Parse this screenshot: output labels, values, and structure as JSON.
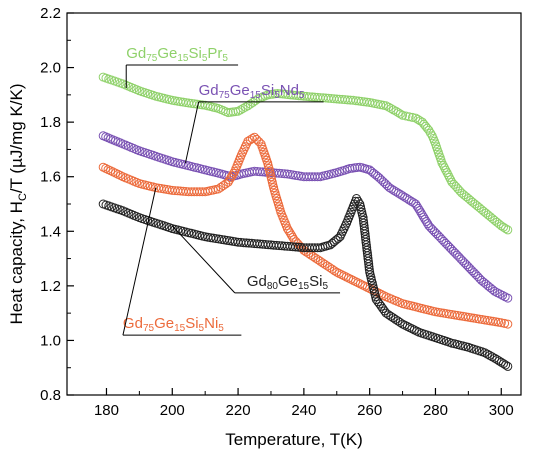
{
  "chart_data": {
    "type": "scatter",
    "xlabel": "Temperature, T(K)",
    "ylabel": "Heat capacity, H",
    "ylabel_sub": "C",
    "ylabel_suffix": "/T (µJ/mg K/K)",
    "xlim": [
      168,
      306
    ],
    "ylim": [
      0.8,
      2.2
    ],
    "x_ticks": [
      180,
      200,
      220,
      240,
      260,
      280,
      300
    ],
    "y_ticks": [
      0.8,
      1.0,
      1.2,
      1.4,
      1.6,
      1.8,
      2.0,
      2.2
    ],
    "x_tick_labels": [
      "180",
      "200",
      "220",
      "240",
      "260",
      "280",
      "300"
    ],
    "y_tick_labels": [
      "0.8",
      "1.0",
      "1.2",
      "1.4",
      "1.6",
      "1.8",
      "2.0",
      "2.2"
    ],
    "grid": false,
    "series": [
      {
        "key": "pr",
        "color": "#8fd16a",
        "label_parts": [
          [
            "Gd",
            ""
          ],
          [
            "75",
            "sub"
          ],
          [
            "Ge",
            ""
          ],
          [
            "15",
            "sub"
          ],
          [
            "Si",
            ""
          ],
          [
            "5",
            "sub"
          ],
          [
            "Pr",
            ""
          ],
          [
            "5",
            "sub"
          ]
        ],
        "points": [
          [
            179,
            1.965
          ],
          [
            185,
            1.94
          ],
          [
            190,
            1.915
          ],
          [
            195,
            1.895
          ],
          [
            200,
            1.88
          ],
          [
            205,
            1.87
          ],
          [
            210,
            1.862
          ],
          [
            214,
            1.85
          ],
          [
            217,
            1.835
          ],
          [
            220,
            1.84
          ],
          [
            223,
            1.86
          ],
          [
            226,
            1.885
          ],
          [
            229,
            1.9
          ],
          [
            232,
            1.905
          ],
          [
            236,
            1.9
          ],
          [
            240,
            1.895
          ],
          [
            245,
            1.89
          ],
          [
            250,
            1.885
          ],
          [
            255,
            1.88
          ],
          [
            260,
            1.872
          ],
          [
            265,
            1.86
          ],
          [
            268,
            1.84
          ],
          [
            270,
            1.825
          ],
          [
            272,
            1.82
          ],
          [
            274,
            1.815
          ],
          [
            276,
            1.8
          ],
          [
            278,
            1.77
          ],
          [
            279,
            1.75
          ],
          [
            280,
            1.72
          ],
          [
            282,
            1.65
          ],
          [
            285,
            1.58
          ],
          [
            288,
            1.54
          ],
          [
            292,
            1.5
          ],
          [
            296,
            1.46
          ],
          [
            300,
            1.42
          ],
          [
            302,
            1.405
          ]
        ]
      },
      {
        "key": "nd",
        "color": "#7a52b3",
        "label_parts": [
          [
            "Gd",
            ""
          ],
          [
            "75",
            "sub"
          ],
          [
            "Ge",
            ""
          ],
          [
            "15",
            "sub"
          ],
          [
            "Si",
            ""
          ],
          [
            "5",
            "sub"
          ],
          [
            "Nd",
            ""
          ],
          [
            "5",
            "sub"
          ]
        ],
        "points": [
          [
            179,
            1.75
          ],
          [
            185,
            1.72
          ],
          [
            190,
            1.695
          ],
          [
            195,
            1.675
          ],
          [
            200,
            1.655
          ],
          [
            205,
            1.64
          ],
          [
            210,
            1.625
          ],
          [
            215,
            1.61
          ],
          [
            218,
            1.6
          ],
          [
            221,
            1.61
          ],
          [
            225,
            1.62
          ],
          [
            230,
            1.615
          ],
          [
            235,
            1.61
          ],
          [
            240,
            1.6
          ],
          [
            245,
            1.6
          ],
          [
            250,
            1.615
          ],
          [
            254,
            1.63
          ],
          [
            257,
            1.635
          ],
          [
            260,
            1.625
          ],
          [
            263,
            1.595
          ],
          [
            266,
            1.56
          ],
          [
            270,
            1.53
          ],
          [
            274,
            1.5
          ],
          [
            276,
            1.46
          ],
          [
            278,
            1.42
          ],
          [
            282,
            1.37
          ],
          [
            286,
            1.32
          ],
          [
            290,
            1.27
          ],
          [
            294,
            1.22
          ],
          [
            298,
            1.18
          ],
          [
            302,
            1.155
          ]
        ]
      },
      {
        "key": "ni",
        "color": "#ec6b3c",
        "label_parts": [
          [
            "Gd",
            ""
          ],
          [
            "75",
            "sub"
          ],
          [
            "Ge",
            ""
          ],
          [
            "15",
            "sub"
          ],
          [
            "Si",
            ""
          ],
          [
            "5",
            "sub"
          ],
          [
            "Ni",
            ""
          ],
          [
            "5",
            "sub"
          ]
        ],
        "points": [
          [
            179,
            1.635
          ],
          [
            185,
            1.6
          ],
          [
            190,
            1.575
          ],
          [
            195,
            1.56
          ],
          [
            200,
            1.55
          ],
          [
            205,
            1.545
          ],
          [
            210,
            1.545
          ],
          [
            214,
            1.555
          ],
          [
            217,
            1.58
          ],
          [
            219,
            1.62
          ],
          [
            221,
            1.68
          ],
          [
            223,
            1.73
          ],
          [
            225,
            1.745
          ],
          [
            227,
            1.72
          ],
          [
            229,
            1.65
          ],
          [
            231,
            1.55
          ],
          [
            233,
            1.47
          ],
          [
            235,
            1.41
          ],
          [
            237,
            1.37
          ],
          [
            240,
            1.33
          ],
          [
            245,
            1.29
          ],
          [
            250,
            1.25
          ],
          [
            255,
            1.22
          ],
          [
            260,
            1.19
          ],
          [
            265,
            1.16
          ],
          [
            270,
            1.135
          ],
          [
            275,
            1.12
          ],
          [
            280,
            1.105
          ],
          [
            285,
            1.095
          ],
          [
            290,
            1.085
          ],
          [
            295,
            1.075
          ],
          [
            300,
            1.065
          ],
          [
            302,
            1.06
          ]
        ]
      },
      {
        "key": "gd80",
        "color": "#222222",
        "label_parts": [
          [
            "Gd",
            ""
          ],
          [
            "80",
            "sub"
          ],
          [
            "Ge",
            ""
          ],
          [
            "15",
            "sub"
          ],
          [
            "Si",
            ""
          ],
          [
            "5",
            "sub"
          ]
        ],
        "points": [
          [
            179,
            1.5
          ],
          [
            185,
            1.475
          ],
          [
            190,
            1.45
          ],
          [
            195,
            1.43
          ],
          [
            200,
            1.41
          ],
          [
            205,
            1.395
          ],
          [
            210,
            1.38
          ],
          [
            215,
            1.37
          ],
          [
            220,
            1.36
          ],
          [
            225,
            1.355
          ],
          [
            230,
            1.35
          ],
          [
            235,
            1.345
          ],
          [
            240,
            1.34
          ],
          [
            245,
            1.34
          ],
          [
            248,
            1.35
          ],
          [
            251,
            1.38
          ],
          [
            253,
            1.43
          ],
          [
            255,
            1.49
          ],
          [
            256,
            1.52
          ],
          [
            257,
            1.5
          ],
          [
            258,
            1.45
          ],
          [
            259,
            1.35
          ],
          [
            260,
            1.25
          ],
          [
            262,
            1.15
          ],
          [
            265,
            1.1
          ],
          [
            270,
            1.06
          ],
          [
            275,
            1.03
          ],
          [
            280,
            1.01
          ],
          [
            285,
            0.99
          ],
          [
            290,
            0.975
          ],
          [
            295,
            0.955
          ],
          [
            298,
            0.935
          ],
          [
            302,
            0.905
          ]
        ]
      }
    ],
    "annotations": [
      {
        "series": "pr",
        "text_x": 186,
        "text_y": 2.035,
        "anchor": "start",
        "underline_to_x": 220,
        "line_to": [
          186,
          1.925
        ]
      },
      {
        "series": "nd",
        "text_x": 208,
        "text_y": 1.9,
        "anchor": "start",
        "underline_to_x": 246,
        "line_to": [
          204,
          1.65
        ]
      },
      {
        "series": "gd80",
        "text_x": 235,
        "text_y": 1.2,
        "anchor": "middle",
        "underline_to_x": 251,
        "line_to": [
          200,
          1.42
        ]
      },
      {
        "series": "ni",
        "text_x": 185,
        "text_y": 1.045,
        "anchor": "start",
        "underline_to_x": 221,
        "line_to": [
          195,
          1.56
        ]
      }
    ]
  }
}
